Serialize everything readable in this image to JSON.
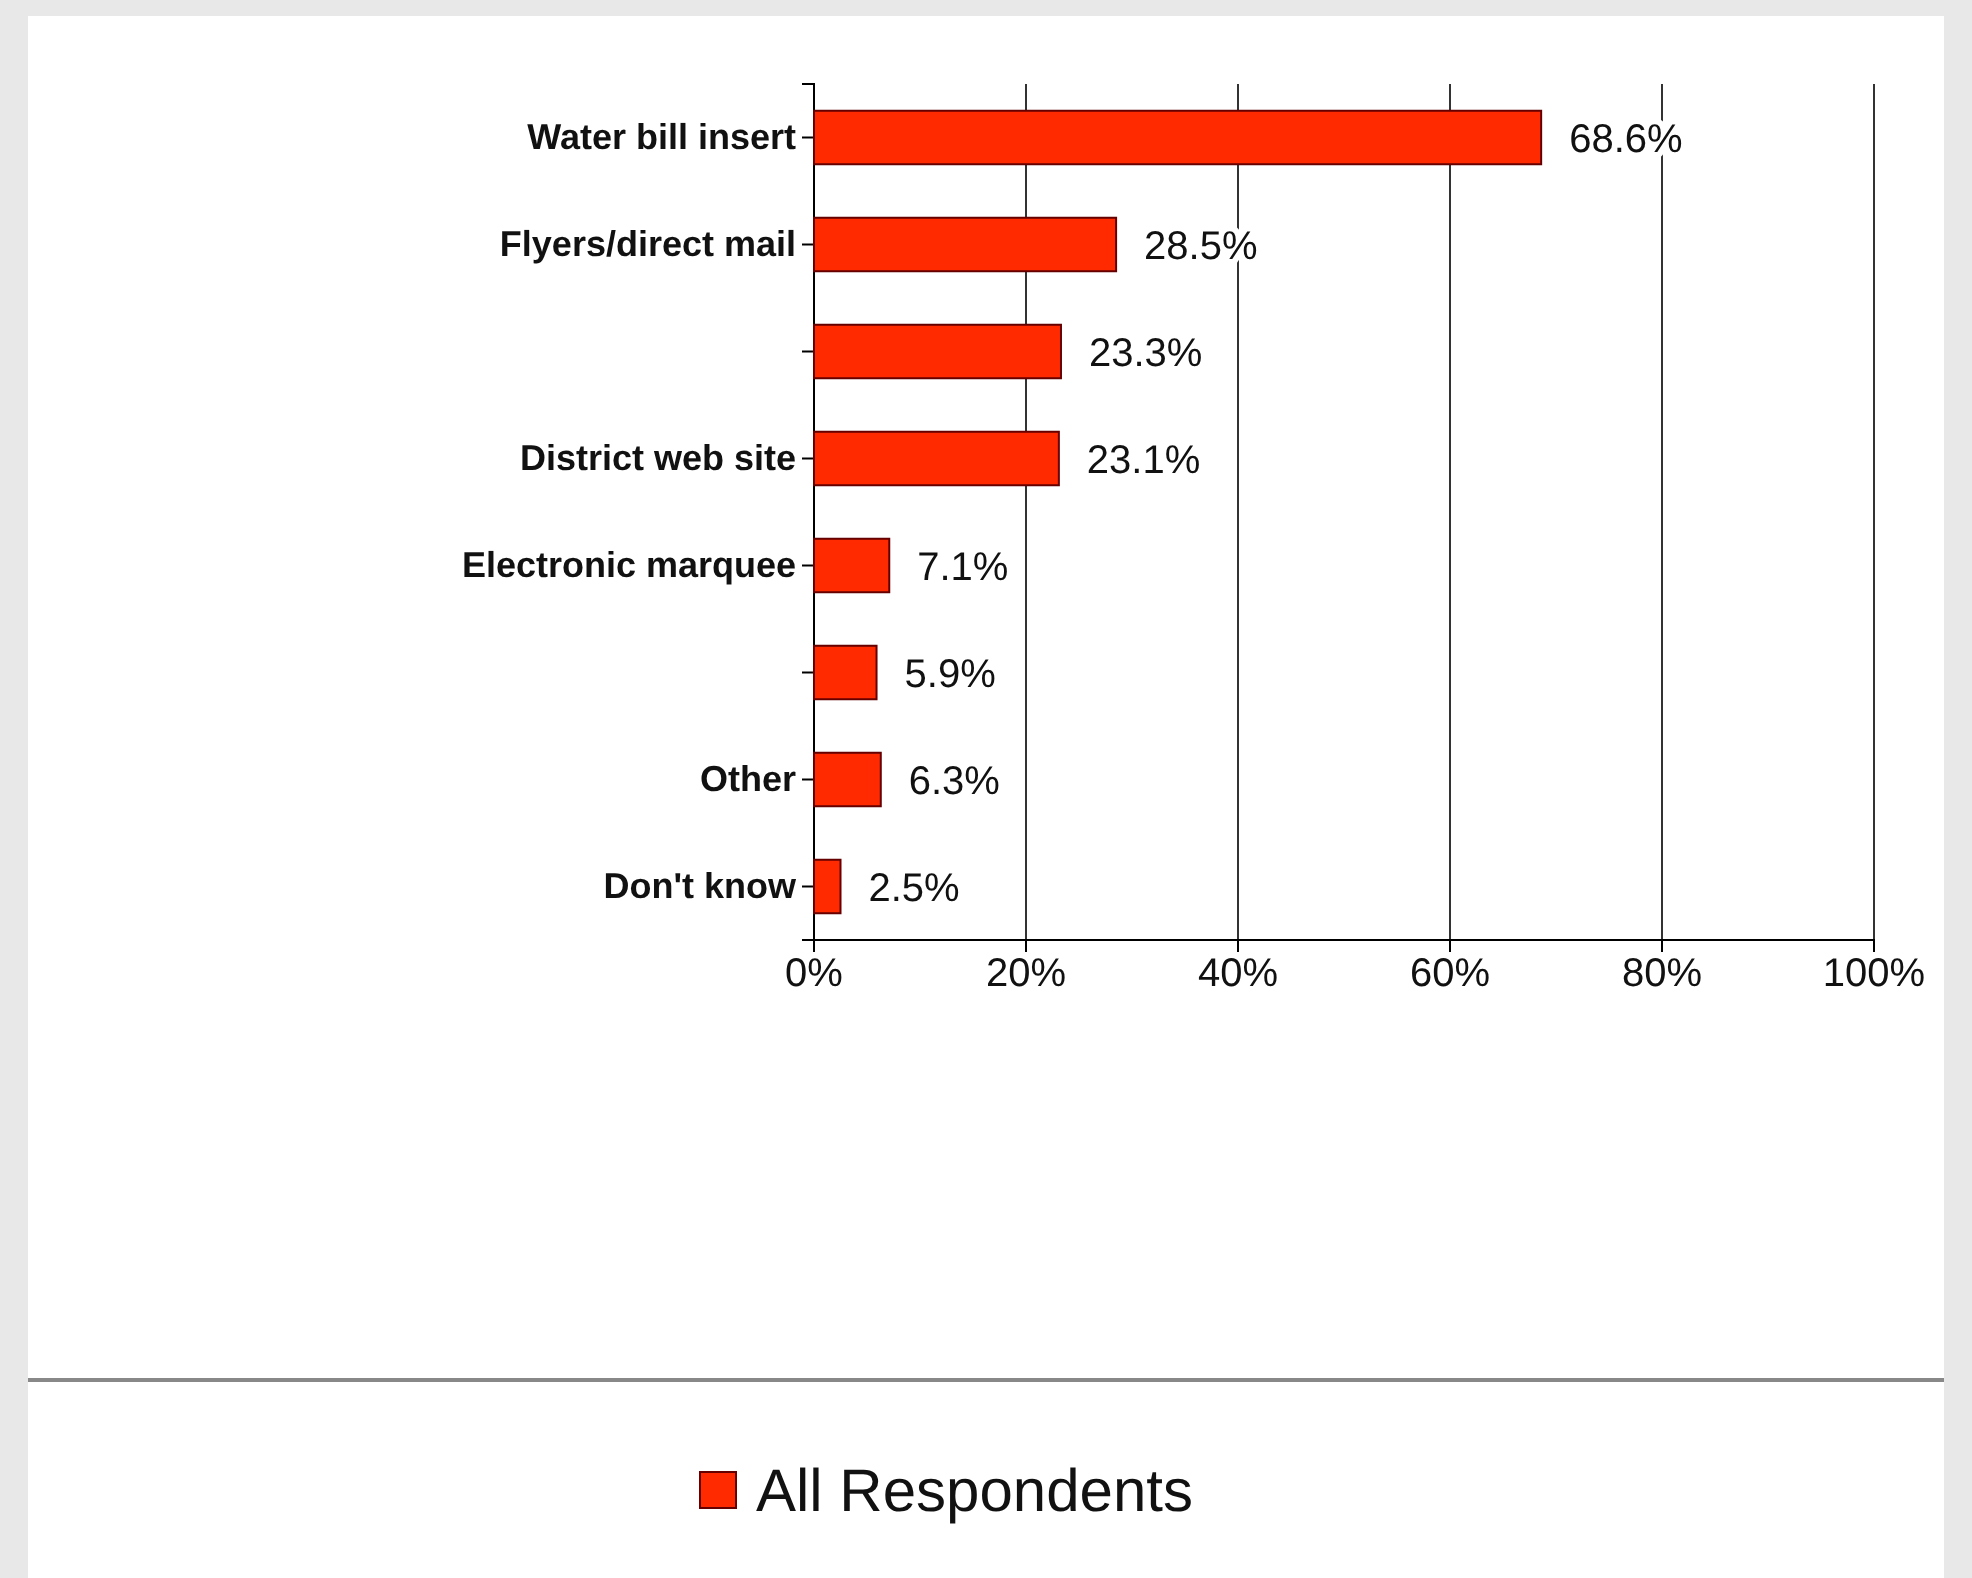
{
  "chart_data": {
    "type": "bar",
    "orientation": "horizontal",
    "categories": [
      "Water bill insert",
      "Flyers/direct mail",
      null,
      "District web site",
      "Electronic marquee",
      null,
      "Other",
      "Don't know"
    ],
    "series": [
      {
        "name": "All Respondents",
        "color": "#ff2a00",
        "values": [
          68.6,
          28.5,
          23.3,
          23.1,
          7.1,
          5.9,
          6.3,
          2.5
        ]
      }
    ],
    "value_labels": [
      "68.6%",
      "28.5%",
      "23.3%",
      "23.1%",
      "7.1%",
      "5.9%",
      "6.3%",
      "2.5%"
    ],
    "xlim": [
      0,
      100
    ],
    "xticks": [
      {
        "value": 0,
        "label": "0%"
      },
      {
        "value": 20,
        "label": "20%"
      },
      {
        "value": 40,
        "label": "40%"
      },
      {
        "value": 60,
        "label": "60%"
      },
      {
        "value": 80,
        "label": "80%"
      },
      {
        "value": 100,
        "label": "100%"
      }
    ],
    "grid": "x",
    "legend": "bottom"
  }
}
